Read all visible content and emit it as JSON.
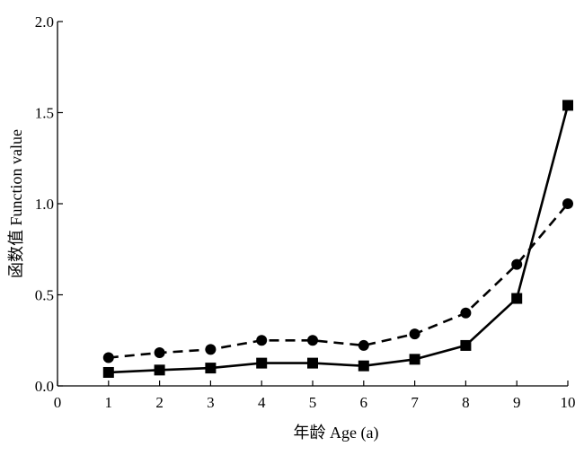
{
  "chart_data": {
    "type": "line",
    "xlabel": "年龄  Age (a)",
    "ylabel": "函数值  Function value",
    "xlim": [
      0,
      10
    ],
    "ylim": [
      0,
      2.0
    ],
    "x_ticks": [
      0,
      1,
      2,
      3,
      4,
      5,
      6,
      7,
      8,
      9,
      10
    ],
    "y_ticks": [
      "0.0",
      "0.5",
      "1.0",
      "1.5",
      "2.0"
    ],
    "x": [
      1,
      2,
      3,
      4,
      5,
      6,
      7,
      8,
      9,
      10
    ],
    "grid": false,
    "series": [
      {
        "marker": "circle",
        "line_style": "dashed",
        "color": "#000000",
        "values": [
          0.155,
          0.182,
          0.2,
          0.25,
          0.25,
          0.222,
          0.285,
          0.4,
          0.667,
          1.0
        ]
      },
      {
        "marker": "square",
        "line_style": "solid",
        "color": "#000000",
        "values": [
          0.074,
          0.087,
          0.098,
          0.125,
          0.125,
          0.11,
          0.146,
          0.222,
          0.48,
          1.54
        ]
      }
    ]
  }
}
